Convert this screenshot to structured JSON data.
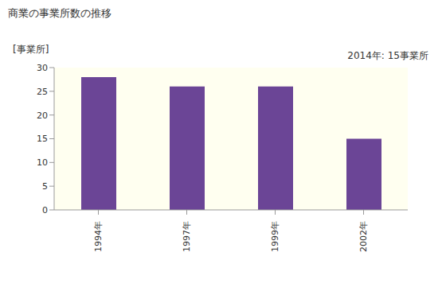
{
  "chart_data": {
    "type": "bar",
    "title": "商業の事業所数の推移",
    "y_label": "[事業所]",
    "annotations": [
      "2014年: 15事業所"
    ],
    "categories": [
      "1994年",
      "1997年",
      "1999年",
      "2002年"
    ],
    "values": [
      28,
      26,
      26,
      15
    ],
    "color": "#6b4596",
    "ylim": [
      0,
      30
    ],
    "yticks": [
      0,
      5,
      10,
      15,
      20,
      25,
      30
    ],
    "grid": false
  }
}
